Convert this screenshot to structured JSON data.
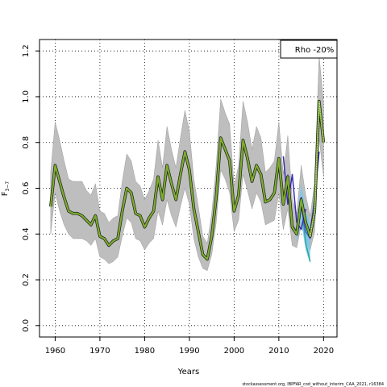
{
  "chart_data": {
    "type": "line",
    "xlabel": "Years",
    "ylabel": "F",
    "ylabel_sub": "3−7",
    "xlim": [
      1956.5,
      2023
    ],
    "ylim": [
      -0.05,
      1.25
    ],
    "xticks": [
      1960,
      1970,
      1980,
      1990,
      2000,
      2010,
      2020
    ],
    "yticks": [
      0.0,
      0.2,
      0.4,
      0.6,
      0.8,
      1.0,
      1.2
    ],
    "ytick_labels": [
      "0.0",
      "0.2",
      "0.4",
      "0.6",
      "0.8",
      "1.0",
      "1.2"
    ],
    "grid": true,
    "legend": {
      "position": "top-right",
      "text": "Rho -20%"
    },
    "source": "stockassessment.org, IBPFAR_cod_without_interim_CAA_2021, r16384",
    "colors": {
      "band": "#bebebe",
      "band_edge": "#8c8c8c",
      "line_outline": "#1a1a1a",
      "line_main": "#7cad2e",
      "peel_purple": "#3a2bb0",
      "peel_teal": "#2aa8a0",
      "peel_blue": "#4a5ad8",
      "peel_band": "#7ec8e8",
      "dotted": "#000000"
    },
    "series": [
      {
        "role": "estimate",
        "x": [
          1959,
          1960,
          1961,
          1962,
          1963,
          1964,
          1965,
          1966,
          1967,
          1968,
          1969,
          1970,
          1971,
          1972,
          1973,
          1974,
          1975,
          1976,
          1977,
          1978,
          1979,
          1980,
          1981,
          1982,
          1983,
          1984,
          1985,
          1986,
          1987,
          1988,
          1989,
          1990,
          1991,
          1992,
          1993,
          1994,
          1995,
          1996,
          1997,
          1998,
          1999,
          2000,
          2001,
          2002,
          2003,
          2004,
          2005,
          2006,
          2007,
          2008,
          2009,
          2010,
          2011,
          2012,
          2013,
          2014,
          2015,
          2016,
          2017,
          2018,
          2019,
          2020
        ],
        "y": [
          0.52,
          0.7,
          0.63,
          0.56,
          0.5,
          0.49,
          0.49,
          0.48,
          0.46,
          0.44,
          0.48,
          0.39,
          0.38,
          0.35,
          0.37,
          0.38,
          0.5,
          0.6,
          0.58,
          0.49,
          0.48,
          0.43,
          0.47,
          0.5,
          0.65,
          0.55,
          0.7,
          0.62,
          0.55,
          0.66,
          0.76,
          0.68,
          0.51,
          0.41,
          0.31,
          0.29,
          0.39,
          0.56,
          0.82,
          0.77,
          0.72,
          0.5,
          0.57,
          0.81,
          0.73,
          0.63,
          0.7,
          0.66,
          0.54,
          0.55,
          0.58,
          0.73,
          0.53,
          0.65,
          0.43,
          0.4,
          0.55,
          0.45,
          0.39,
          0.5,
          0.98,
          0.8
        ],
        "lower": [
          0.4,
          0.58,
          0.5,
          0.44,
          0.4,
          0.38,
          0.38,
          0.38,
          0.37,
          0.35,
          0.38,
          0.3,
          0.29,
          0.27,
          0.28,
          0.3,
          0.39,
          0.47,
          0.45,
          0.38,
          0.37,
          0.33,
          0.36,
          0.38,
          0.5,
          0.44,
          0.55,
          0.48,
          0.43,
          0.52,
          0.6,
          0.53,
          0.38,
          0.3,
          0.25,
          0.24,
          0.31,
          0.45,
          0.68,
          0.64,
          0.58,
          0.41,
          0.46,
          0.66,
          0.59,
          0.51,
          0.58,
          0.54,
          0.44,
          0.45,
          0.46,
          0.58,
          0.42,
          0.51,
          0.35,
          0.34,
          0.44,
          0.37,
          0.33,
          0.41,
          0.82,
          0.65
        ],
        "upper": [
          0.67,
          0.89,
          0.81,
          0.72,
          0.64,
          0.63,
          0.63,
          0.63,
          0.59,
          0.57,
          0.62,
          0.5,
          0.49,
          0.45,
          0.47,
          0.48,
          0.63,
          0.75,
          0.72,
          0.63,
          0.61,
          0.55,
          0.59,
          0.64,
          0.81,
          0.69,
          0.87,
          0.77,
          0.69,
          0.82,
          0.94,
          0.85,
          0.64,
          0.52,
          0.39,
          0.36,
          0.49,
          0.7,
          0.99,
          0.93,
          0.88,
          0.61,
          0.7,
          0.98,
          0.89,
          0.77,
          0.87,
          0.82,
          0.67,
          0.69,
          0.72,
          0.89,
          0.66,
          0.83,
          0.55,
          0.49,
          0.7,
          0.57,
          0.48,
          0.62,
          1.18,
          0.97
        ]
      },
      {
        "role": "peel",
        "color": "peel_purple",
        "x": [
          2014,
          2015,
          2016,
          2017,
          2018,
          2019
        ],
        "y": [
          0.41,
          0.56,
          0.44,
          0.41,
          0.55,
          0.76
        ]
      },
      {
        "role": "peel",
        "color": "peel_teal",
        "x": [
          2013,
          2014,
          2015,
          2016,
          2017
        ],
        "y": [
          0.42,
          0.41,
          0.54,
          0.36,
          0.28
        ]
      },
      {
        "role": "peel",
        "color": "peel_blue",
        "x": [
          2012,
          2013,
          2014,
          2015,
          2016,
          2017,
          2018
        ],
        "y": [
          0.66,
          0.44,
          0.41,
          0.52,
          0.41,
          0.38,
          0.56
        ]
      },
      {
        "role": "peel",
        "color": "peel_purple",
        "x": [
          2011,
          2012,
          2013,
          2014,
          2015,
          2016
        ],
        "y": [
          0.74,
          0.53,
          0.66,
          0.45,
          0.42,
          0.51
        ]
      }
    ],
    "peel_band": {
      "x": [
        2014,
        2015,
        2016,
        2017
      ],
      "lower": [
        0.36,
        0.45,
        0.33,
        0.27
      ],
      "upper": [
        0.47,
        0.62,
        0.5,
        0.45
      ]
    }
  }
}
